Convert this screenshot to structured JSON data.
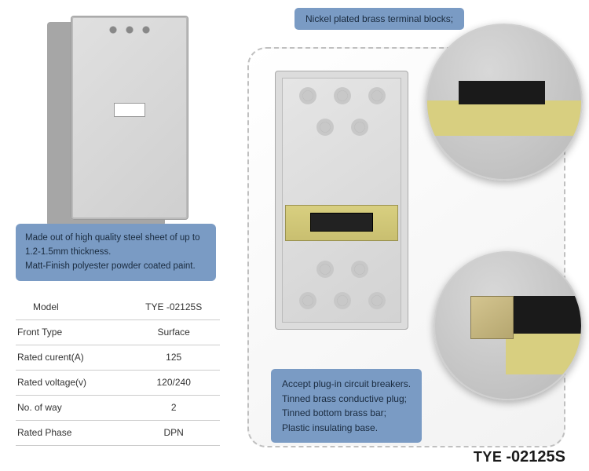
{
  "callouts": {
    "material": "Made out of high quality steel sheet of up to 1.2-1.5mm thickness.\nMatt-Finish polyester powder coated paint.",
    "terminal": "Nickel plated brass terminal blocks;",
    "features": "Accept plug-in circuit breakers.\nTinned brass conductive plug;\nTinned bottom brass bar;\nPlastic insulating base."
  },
  "spec_table": {
    "rows": [
      {
        "label": "Model",
        "value": "TYE -02125S"
      },
      {
        "label": "Front Type",
        "value": "Surface"
      },
      {
        "label": "Rated curent(A)",
        "value": "125"
      },
      {
        "label": "Rated voltage(v)",
        "value": "120/240"
      },
      {
        "label": "No. of way",
        "value": "2"
      },
      {
        "label": "Rated Phase",
        "value": "DPN"
      }
    ]
  },
  "model_tag": {
    "prefix": "TYE",
    "suffix": "-02125S"
  },
  "colors": {
    "callout_bg": "#7a9bc4",
    "callout_text": "#1a2b3f",
    "table_border": "#cccccc",
    "dashed_border": "#c0c0c0"
  }
}
